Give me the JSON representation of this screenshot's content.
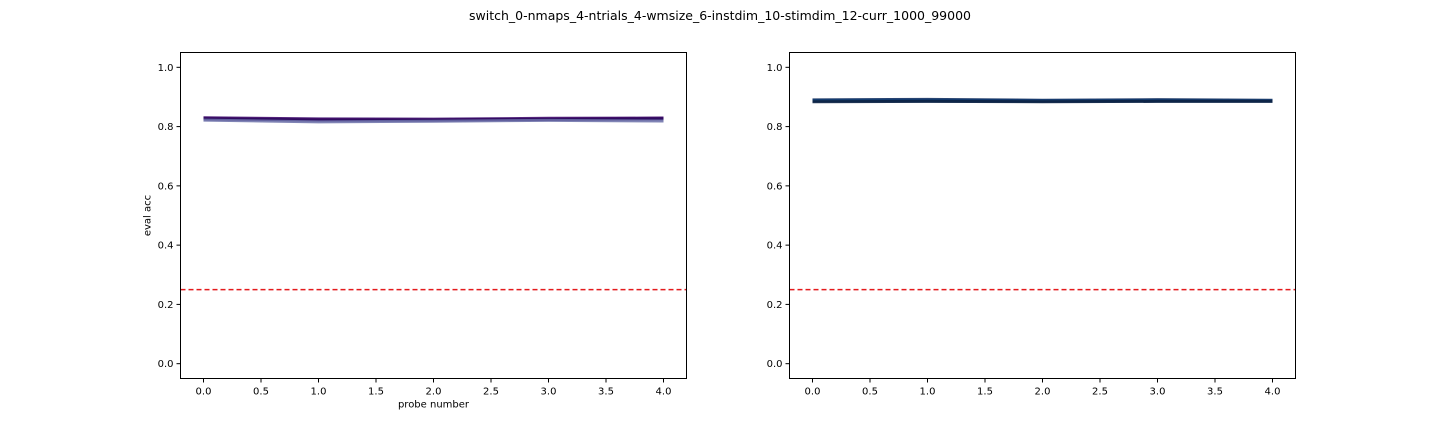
{
  "figure": {
    "suptitle": "switch_0-nmaps_4-ntrials_4-wmsize_6-instdim_10-stimdim_12-curr_1000_99000"
  },
  "chart_data": [
    {
      "type": "line",
      "xlabel": "probe number",
      "ylabel": "eval acc",
      "xlim": [
        -0.2,
        4.2
      ],
      "ylim": [
        -0.05,
        1.05
      ],
      "xticks": [
        0.0,
        0.5,
        1.0,
        1.5,
        2.0,
        2.5,
        3.0,
        3.5,
        4.0
      ],
      "xtick_labels": [
        "0.0",
        "0.5",
        "1.0",
        "1.5",
        "2.0",
        "2.5",
        "3.0",
        "3.5",
        "4.0"
      ],
      "yticks": [
        0.0,
        0.2,
        0.4,
        0.6,
        0.8,
        1.0
      ],
      "ytick_labels": [
        "0.0",
        "0.2",
        "0.4",
        "0.6",
        "0.8",
        "1.0"
      ],
      "grid": false,
      "x": [
        0,
        1,
        2,
        3,
        4
      ],
      "series": [
        {
          "color": "#3b0f70",
          "values": [
            0.83,
            0.826,
            0.825,
            0.828,
            0.829
          ]
        },
        {
          "color": "#4b0c6b",
          "values": [
            0.828,
            0.824,
            0.823,
            0.826,
            0.828
          ]
        },
        {
          "color": "#2a0a5e",
          "values": [
            0.826,
            0.822,
            0.822,
            0.824,
            0.826
          ]
        },
        {
          "color": "#6a6fa8",
          "values": [
            0.822,
            0.816,
            0.818,
            0.821,
            0.819
          ]
        }
      ],
      "hlines": [
        {
          "y": 0.25,
          "color": "#e41a1c",
          "style": "dashed"
        }
      ]
    },
    {
      "type": "line",
      "xlabel": "",
      "ylabel": "",
      "xlim": [
        -0.2,
        4.2
      ],
      "ylim": [
        -0.05,
        1.05
      ],
      "xticks": [
        0.0,
        0.5,
        1.0,
        1.5,
        2.0,
        2.5,
        3.0,
        3.5,
        4.0
      ],
      "xtick_labels": [
        "0.0",
        "0.5",
        "1.0",
        "1.5",
        "2.0",
        "2.5",
        "3.0",
        "3.5",
        "4.0"
      ],
      "yticks": [
        0.0,
        0.2,
        0.4,
        0.6,
        0.8,
        1.0
      ],
      "ytick_labels": [
        "0.0",
        "0.2",
        "0.4",
        "0.6",
        "0.8",
        "1.0"
      ],
      "grid": false,
      "x": [
        0,
        1,
        2,
        3,
        4
      ],
      "series": [
        {
          "color": "#0d2a5c",
          "values": [
            0.89,
            0.892,
            0.889,
            0.891,
            0.889
          ]
        },
        {
          "color": "#08306b",
          "values": [
            0.888,
            0.889,
            0.887,
            0.888,
            0.887
          ]
        },
        {
          "color": "#1f4e79",
          "values": [
            0.886,
            0.886,
            0.885,
            0.886,
            0.886
          ]
        },
        {
          "color": "#0b1f3f",
          "values": [
            0.884,
            0.885,
            0.884,
            0.885,
            0.885
          ]
        }
      ],
      "hlines": [
        {
          "y": 0.25,
          "color": "#e41a1c",
          "style": "dashed"
        }
      ]
    }
  ]
}
